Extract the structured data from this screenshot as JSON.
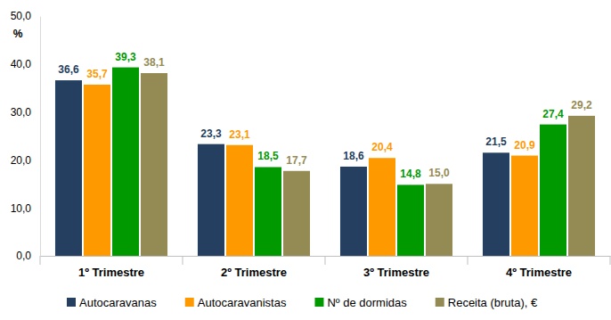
{
  "chart_data": {
    "type": "bar",
    "y_label": "%",
    "categories": [
      "1º Trimestre",
      "2º Trimestre",
      "3º Trimestre",
      "4º Trimestre"
    ],
    "series": [
      {
        "name": "Autocaravanas",
        "color": "#243f60",
        "values": [
          36.6,
          23.3,
          18.6,
          21.5
        ],
        "value_labels": [
          "36,6",
          "23,3",
          "18,6",
          "21,5"
        ]
      },
      {
        "name": "Autocaravanistas",
        "color": "#ff9900",
        "values": [
          35.7,
          23.1,
          20.4,
          20.9
        ],
        "value_labels": [
          "35,7",
          "23,1",
          "20,4",
          "20,9"
        ]
      },
      {
        "name": "Nº de dormidas",
        "color": "#009900",
        "values": [
          39.3,
          18.5,
          14.8,
          27.4
        ],
        "value_labels": [
          "39,3",
          "18,5",
          "14,8",
          "27,4"
        ]
      },
      {
        "name": "Receita (bruta), €",
        "color": "#948a54",
        "values": [
          38.1,
          17.7,
          15.0,
          29.2
        ],
        "value_labels": [
          "38,1",
          "17,7",
          "15,0",
          "29,2"
        ]
      }
    ],
    "ylim": [
      0,
      50
    ],
    "yticks": [
      {
        "value": 0,
        "label": "0,0"
      },
      {
        "value": 10,
        "label": "10,0"
      },
      {
        "value": 20,
        "label": "20,0"
      },
      {
        "value": 30,
        "label": "30,0"
      },
      {
        "value": 40,
        "label": "40,0"
      },
      {
        "value": 50,
        "label": "50,0"
      }
    ],
    "grid": false,
    "data_labels": true,
    "legend": "bottom"
  }
}
